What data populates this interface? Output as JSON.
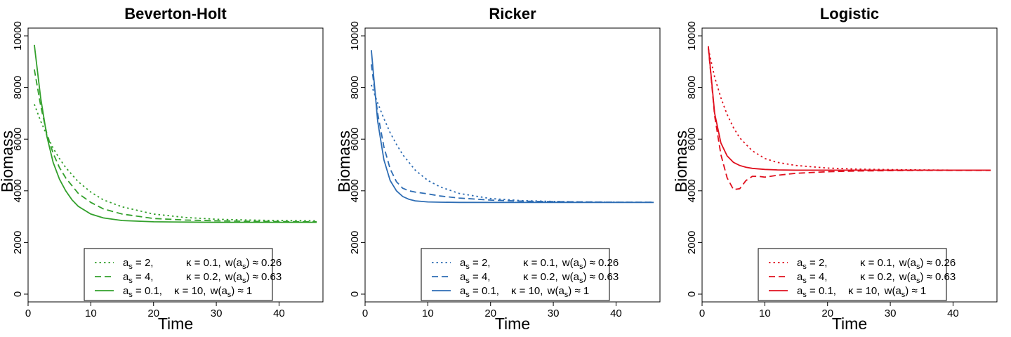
{
  "chart_data": [
    {
      "type": "line",
      "title": "Beverton-Holt",
      "xlabel": "Time",
      "ylabel": "Biomass",
      "xlim": [
        0,
        47
      ],
      "ylim": [
        -300,
        10300
      ],
      "xticks": [
        0,
        10,
        20,
        30,
        40
      ],
      "yticks": [
        0,
        2000,
        4000,
        6000,
        8000,
        10000
      ],
      "color": "#33a02c",
      "legend_position": "bottom-center",
      "series": [
        {
          "name": "a_s = 2, κ = 0.1, w(a_s) ≈ 0.26",
          "legend": {
            "a": "2,",
            "k": "0.1,",
            "w": "0.26"
          },
          "dash": "dotted",
          "x": [
            1,
            2,
            3,
            4,
            5,
            6,
            8,
            10,
            12,
            15,
            20,
            25,
            30,
            35,
            40,
            46
          ],
          "y": [
            7350,
            6700,
            6150,
            5650,
            5250,
            4900,
            4350,
            3950,
            3650,
            3380,
            3100,
            2970,
            2900,
            2870,
            2850,
            2840
          ]
        },
        {
          "name": "a_s = 4, κ = 0.2, w(a_s) ≈ 0.63",
          "legend": {
            "a": "4,",
            "k": "0.2,",
            "w": "0.63"
          },
          "dash": "dashed",
          "x": [
            1,
            2,
            3,
            4,
            5,
            6,
            8,
            10,
            12,
            15,
            20,
            25,
            30,
            35,
            40,
            46
          ],
          "y": [
            8700,
            7300,
            6200,
            5450,
            4900,
            4500,
            3900,
            3550,
            3300,
            3100,
            2930,
            2870,
            2840,
            2820,
            2810,
            2800
          ]
        },
        {
          "name": "a_s = 0.1, κ = 10, w(a_s) ≈ 1",
          "legend": {
            "a": "0.1,",
            "k": "10,",
            "w": "1"
          },
          "dash": "solid",
          "x": [
            1,
            2,
            3,
            4,
            5,
            6,
            7,
            8,
            10,
            12,
            15,
            20,
            25,
            30,
            35,
            40,
            46
          ],
          "y": [
            9650,
            7600,
            6100,
            5100,
            4450,
            4000,
            3650,
            3400,
            3100,
            2950,
            2850,
            2800,
            2790,
            2780,
            2780,
            2780,
            2780
          ]
        }
      ]
    },
    {
      "type": "line",
      "title": "Ricker",
      "xlabel": "Time",
      "ylabel": "Biomass",
      "xlim": [
        0,
        47
      ],
      "ylim": [
        -300,
        10300
      ],
      "xticks": [
        0,
        10,
        20,
        30,
        40
      ],
      "yticks": [
        0,
        2000,
        4000,
        6000,
        8000,
        10000
      ],
      "color": "#2e6db4",
      "legend_position": "bottom-center",
      "series": [
        {
          "name": "a_s = 2, κ = 0.1, w(a_s) ≈ 0.26",
          "legend": {
            "a": "2,",
            "k": "0.1,",
            "w": "0.26"
          },
          "dash": "dotted",
          "x": [
            1,
            2,
            3,
            4,
            5,
            6,
            8,
            10,
            12,
            15,
            20,
            25,
            30,
            35,
            40,
            46
          ],
          "y": [
            8100,
            7400,
            6800,
            6250,
            5800,
            5400,
            4800,
            4400,
            4150,
            3900,
            3700,
            3620,
            3590,
            3570,
            3560,
            3560
          ]
        },
        {
          "name": "a_s = 4, κ = 0.2, w(a_s) ≈ 0.63",
          "legend": {
            "a": "4,",
            "k": "0.2,",
            "w": "0.63"
          },
          "dash": "dashed",
          "x": [
            1,
            2,
            3,
            4,
            5,
            6,
            7,
            8,
            10,
            12,
            15,
            20,
            25,
            30,
            35,
            40,
            46
          ],
          "y": [
            8900,
            7000,
            5700,
            4850,
            4350,
            4100,
            4000,
            3950,
            3880,
            3800,
            3720,
            3640,
            3600,
            3580,
            3570,
            3560,
            3560
          ]
        },
        {
          "name": "a_s = 0.1, κ = 10, w(a_s) ≈ 1",
          "legend": {
            "a": "0.1,",
            "k": "10,",
            "w": "1"
          },
          "dash": "solid",
          "x": [
            1,
            2,
            3,
            4,
            5,
            6,
            7,
            8,
            10,
            12,
            15,
            20,
            25,
            30,
            35,
            40,
            46
          ],
          "y": [
            9450,
            6700,
            5200,
            4400,
            4000,
            3780,
            3670,
            3610,
            3570,
            3560,
            3550,
            3550,
            3550,
            3550,
            3550,
            3550,
            3550
          ]
        }
      ]
    },
    {
      "type": "line",
      "title": "Logistic",
      "xlabel": "Time",
      "ylabel": "Biomass",
      "xlim": [
        0,
        47
      ],
      "ylim": [
        -300,
        10300
      ],
      "xticks": [
        0,
        10,
        20,
        30,
        40
      ],
      "yticks": [
        0,
        2000,
        4000,
        6000,
        8000,
        10000
      ],
      "color": "#e0101e",
      "legend_position": "bottom-center",
      "series": [
        {
          "name": "a_s = 2, κ = 0.1, w(a_s) ≈ 0.26",
          "legend": {
            "a": "2,",
            "k": "0.1,",
            "w": "0.26"
          },
          "dash": "dotted",
          "x": [
            1,
            2,
            3,
            4,
            5,
            6,
            8,
            10,
            12,
            15,
            20,
            25,
            30,
            35,
            40,
            46
          ],
          "y": [
            9500,
            8400,
            7600,
            6950,
            6450,
            6050,
            5550,
            5250,
            5100,
            4980,
            4880,
            4840,
            4820,
            4810,
            4800,
            4800
          ]
        },
        {
          "name": "a_s = 4, κ = 0.2, w(a_s) ≈ 0.63",
          "legend": {
            "a": "4,",
            "k": "0.2,",
            "w": "0.63"
          },
          "dash": "dashed",
          "x": [
            1,
            2,
            3,
            4,
            5,
            6,
            7,
            8,
            9,
            10,
            12,
            15,
            20,
            25,
            30,
            35,
            40,
            46
          ],
          "y": [
            9550,
            6900,
            5400,
            4500,
            4050,
            4080,
            4400,
            4560,
            4560,
            4530,
            4600,
            4680,
            4740,
            4770,
            4780,
            4790,
            4790,
            4790
          ]
        },
        {
          "name": "a_s = 0.1, κ = 10, w(a_s) ≈ 1",
          "legend": {
            "a": "0.1,",
            "k": "10,",
            "w": "1"
          },
          "dash": "solid",
          "x": [
            1,
            2,
            3,
            4,
            5,
            6,
            7,
            8,
            10,
            12,
            15,
            20,
            25,
            30,
            35,
            40,
            46
          ],
          "y": [
            9600,
            7000,
            5850,
            5350,
            5100,
            4980,
            4910,
            4870,
            4830,
            4810,
            4800,
            4800,
            4800,
            4800,
            4800,
            4800,
            4800
          ]
        }
      ]
    }
  ]
}
